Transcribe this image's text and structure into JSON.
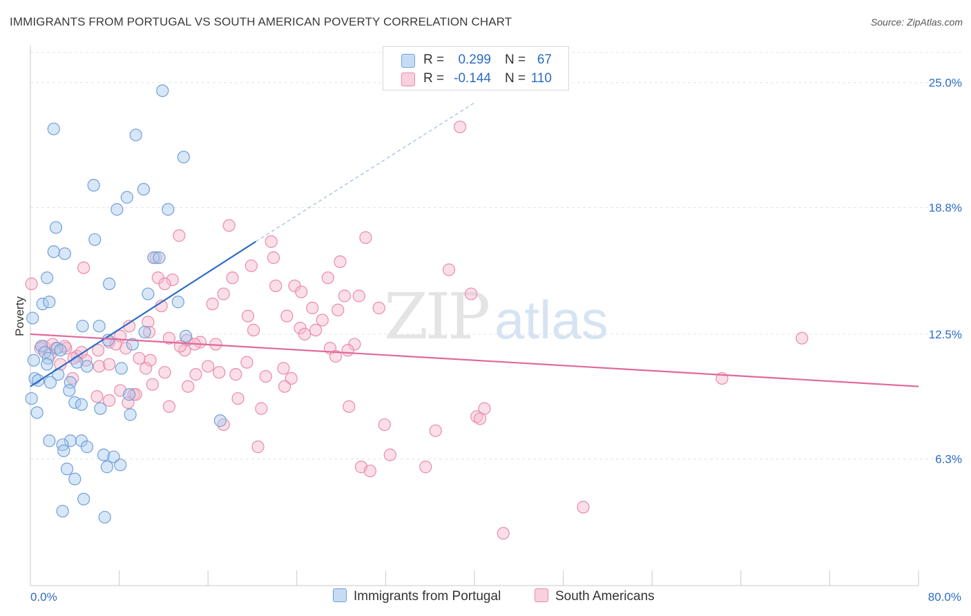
{
  "header": {
    "title": "IMMIGRANTS FROM PORTUGAL VS SOUTH AMERICAN POVERTY CORRELATION CHART",
    "source": "Source: ZipAtlas.com"
  },
  "colors": {
    "blue_fill": "#a9c9ee",
    "blue_stroke": "#6f9fd8",
    "blue_line": "#2d6bc4",
    "pink_fill": "#f6b8cd",
    "pink_stroke": "#e98aaa",
    "pink_line": "#e0699a",
    "value_text": "#2d6bc4",
    "grid": "#e3e3e3"
  },
  "legend_top": {
    "rows": [
      {
        "r_label": "R =",
        "r_value": "0.299",
        "n_label": "N =",
        "n_value": "67"
      },
      {
        "r_label": "R =",
        "r_value": "-0.144",
        "n_label": "N =",
        "n_value": "110"
      }
    ]
  },
  "legend_bottom": {
    "items": [
      {
        "label": "Immigrants from Portugal"
      },
      {
        "label": "South Americans"
      }
    ]
  },
  "chart_data": {
    "type": "scatter",
    "title": "IMMIGRANTS FROM PORTUGAL VS SOUTH AMERICAN POVERTY CORRELATION CHART",
    "xlabel": "",
    "ylabel": "Poverty",
    "xlim": [
      0,
      80
    ],
    "ylim": [
      0,
      26.5
    ],
    "x_tick_labels": [
      {
        "value": 0,
        "label": "0.0%"
      },
      {
        "value": 80,
        "label": "80.0%"
      }
    ],
    "y_tick_labels": [
      {
        "value": 6.3,
        "label": "6.3%"
      },
      {
        "value": 12.5,
        "label": "12.5%"
      },
      {
        "value": 18.8,
        "label": "18.8%"
      },
      {
        "value": 25.0,
        "label": "25.0%"
      }
    ],
    "grid": true,
    "watermark": "ZIPatlas",
    "series": [
      {
        "name": "Immigrants from Portugal",
        "color": "#a9c9ee",
        "R": 0.299,
        "N": 67,
        "trend": {
          "x0": 0,
          "y0": 9.9,
          "x1": 20.3,
          "y1": 17.1,
          "dashed_to_x": 40,
          "dashed_to_y": 24.0
        },
        "points": [
          [
            11.9,
            24.6
          ],
          [
            2.1,
            22.7
          ],
          [
            9.5,
            22.4
          ],
          [
            13.8,
            21.3
          ],
          [
            5.7,
            19.9
          ],
          [
            10.2,
            19.7
          ],
          [
            8.7,
            19.3
          ],
          [
            12.4,
            18.7
          ],
          [
            7.8,
            18.7
          ],
          [
            2.3,
            17.8
          ],
          [
            5.8,
            17.2
          ],
          [
            2.1,
            16.6
          ],
          [
            3.1,
            16.5
          ],
          [
            11.1,
            16.3
          ],
          [
            11.6,
            16.3
          ],
          [
            1.5,
            15.3
          ],
          [
            7.1,
            15.0
          ],
          [
            10.6,
            14.5
          ],
          [
            13.3,
            14.1
          ],
          [
            1.1,
            14.0
          ],
          [
            1.7,
            14.1
          ],
          [
            0.2,
            13.3
          ],
          [
            4.7,
            12.9
          ],
          [
            6.2,
            12.9
          ],
          [
            10.3,
            12.6
          ],
          [
            14.0,
            12.4
          ],
          [
            7.0,
            12.2
          ],
          [
            9.2,
            12.0
          ],
          [
            1.0,
            11.9
          ],
          [
            2.4,
            11.8
          ],
          [
            2.7,
            11.7
          ],
          [
            1.3,
            11.6
          ],
          [
            1.6,
            11.3
          ],
          [
            4.2,
            11.1
          ],
          [
            5.1,
            10.9
          ],
          [
            8.2,
            10.8
          ],
          [
            1.5,
            11.0
          ],
          [
            2.5,
            10.5
          ],
          [
            0.4,
            10.3
          ],
          [
            0.7,
            10.2
          ],
          [
            3.6,
            10.1
          ],
          [
            1.8,
            10.1
          ],
          [
            3.5,
            9.7
          ],
          [
            8.9,
            9.5
          ],
          [
            0.1,
            9.3
          ],
          [
            4.0,
            9.1
          ],
          [
            4.6,
            9.0
          ],
          [
            6.3,
            8.8
          ],
          [
            0.6,
            8.6
          ],
          [
            9.0,
            8.5
          ],
          [
            17.1,
            8.2
          ],
          [
            1.7,
            7.2
          ],
          [
            3.6,
            7.2
          ],
          [
            4.6,
            7.2
          ],
          [
            2.9,
            7.0
          ],
          [
            5.1,
            6.9
          ],
          [
            3.0,
            6.7
          ],
          [
            6.6,
            6.5
          ],
          [
            7.5,
            6.4
          ],
          [
            8.1,
            6.0
          ],
          [
            6.9,
            5.9
          ],
          [
            3.3,
            5.8
          ],
          [
            4.0,
            5.3
          ],
          [
            4.8,
            4.3
          ],
          [
            2.9,
            3.7
          ],
          [
            6.7,
            3.4
          ],
          [
            0.3,
            11.2
          ]
        ]
      },
      {
        "name": "South Americans",
        "color": "#f6b8cd",
        "R": -0.144,
        "N": 110,
        "trend": {
          "x0": 0,
          "y0": 12.5,
          "x1": 80,
          "y1": 9.9
        },
        "points": [
          [
            38.7,
            22.8
          ],
          [
            17.9,
            17.9
          ],
          [
            13.4,
            17.4
          ],
          [
            30.2,
            17.3
          ],
          [
            21.7,
            17.1
          ],
          [
            11.3,
            16.3
          ],
          [
            21.9,
            16.3
          ],
          [
            27.9,
            16.1
          ],
          [
            19.9,
            15.9
          ],
          [
            4.8,
            15.8
          ],
          [
            37.7,
            15.7
          ],
          [
            11.5,
            15.3
          ],
          [
            18.2,
            15.3
          ],
          [
            26.8,
            15.3
          ],
          [
            12.8,
            15.2
          ],
          [
            12.1,
            15.0
          ],
          [
            22.1,
            14.9
          ],
          [
            23.8,
            14.9
          ],
          [
            0.1,
            15.0
          ],
          [
            24.4,
            14.6
          ],
          [
            17.4,
            14.5
          ],
          [
            28.3,
            14.4
          ],
          [
            29.6,
            14.4
          ],
          [
            39.7,
            14.5
          ],
          [
            16.4,
            14.0
          ],
          [
            11.8,
            13.9
          ],
          [
            31.4,
            13.8
          ],
          [
            27.7,
            13.7
          ],
          [
            25.4,
            13.8
          ],
          [
            19.6,
            13.4
          ],
          [
            23.1,
            13.4
          ],
          [
            26.3,
            13.2
          ],
          [
            10.6,
            13.1
          ],
          [
            8.9,
            12.9
          ],
          [
            24.3,
            12.8
          ],
          [
            25.7,
            12.7
          ],
          [
            20.1,
            12.7
          ],
          [
            10.7,
            12.6
          ],
          [
            8.1,
            12.4
          ],
          [
            12.5,
            12.3
          ],
          [
            14.1,
            12.2
          ],
          [
            15.3,
            12.1
          ],
          [
            69.5,
            12.3
          ],
          [
            7.1,
            12.1
          ],
          [
            7.7,
            12.0
          ],
          [
            14.8,
            12.0
          ],
          [
            16.7,
            12.0
          ],
          [
            29.2,
            12.0
          ],
          [
            1.2,
            11.9
          ],
          [
            2.3,
            11.8
          ],
          [
            3.2,
            11.8
          ],
          [
            8.6,
            11.8
          ],
          [
            13.9,
            11.7
          ],
          [
            27.0,
            11.8
          ],
          [
            28.6,
            11.7
          ],
          [
            6.1,
            11.7
          ],
          [
            1.8,
            11.5
          ],
          [
            4.2,
            11.4
          ],
          [
            3.9,
            11.3
          ],
          [
            5.0,
            11.2
          ],
          [
            10.8,
            11.2
          ],
          [
            19.5,
            11.1
          ],
          [
            27.5,
            11.4
          ],
          [
            2.7,
            11.0
          ],
          [
            6.2,
            10.9
          ],
          [
            7.1,
            11.0
          ],
          [
            16.0,
            10.9
          ],
          [
            10.4,
            10.8
          ],
          [
            22.8,
            10.8
          ],
          [
            12.1,
            10.6
          ],
          [
            17.0,
            10.6
          ],
          [
            18.5,
            10.5
          ],
          [
            14.9,
            10.5
          ],
          [
            21.2,
            10.4
          ],
          [
            23.5,
            10.3
          ],
          [
            3.8,
            10.3
          ],
          [
            62.3,
            10.3
          ],
          [
            22.9,
            9.9
          ],
          [
            14.2,
            9.9
          ],
          [
            8.1,
            9.7
          ],
          [
            9.3,
            9.5
          ],
          [
            9.5,
            9.5
          ],
          [
            6.0,
            9.4
          ],
          [
            18.7,
            9.3
          ],
          [
            7.1,
            9.2
          ],
          [
            8.8,
            9.1
          ],
          [
            12.5,
            8.9
          ],
          [
            28.7,
            8.9
          ],
          [
            20.8,
            8.8
          ],
          [
            40.9,
            8.8
          ],
          [
            40.2,
            8.4
          ],
          [
            40.5,
            8.3
          ],
          [
            17.4,
            8.0
          ],
          [
            31.9,
            8.0
          ],
          [
            36.5,
            7.7
          ],
          [
            20.5,
            6.9
          ],
          [
            32.4,
            6.5
          ],
          [
            29.8,
            5.9
          ],
          [
            35.6,
            5.9
          ],
          [
            30.6,
            5.7
          ],
          [
            49.8,
            3.9
          ],
          [
            42.6,
            2.6
          ],
          [
            3.1,
            11.9
          ],
          [
            2.0,
            12.0
          ],
          [
            4.6,
            11.6
          ],
          [
            0.9,
            11.8
          ],
          [
            9.8,
            11.3
          ],
          [
            13.5,
            11.9
          ],
          [
            24.7,
            12.5
          ],
          [
            11.0,
            10.0
          ]
        ]
      }
    ]
  }
}
